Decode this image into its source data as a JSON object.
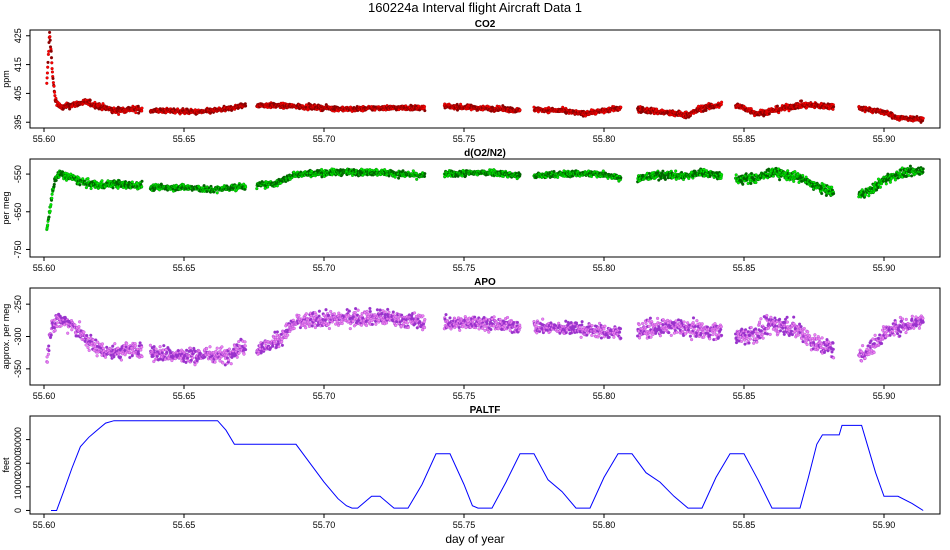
{
  "figure": {
    "title": "160224a   Interval flight Aircraft Data 1",
    "xlabel": "day of year"
  },
  "chart_data": [
    {
      "type": "scatter",
      "title": "CO2",
      "ylabel": "ppm",
      "xlim": [
        55.595,
        55.92
      ],
      "ylim": [
        393,
        427
      ],
      "xticks": [
        55.6,
        55.65,
        55.7,
        55.75,
        55.8,
        55.85,
        55.9
      ],
      "xtick_labels": [
        "55.60",
        "55.65",
        "55.70",
        "55.75",
        "55.80",
        "55.85",
        "55.90"
      ],
      "yticks": [
        395,
        405,
        415,
        425
      ],
      "ytick_labels": [
        "395",
        "405",
        "415",
        "425"
      ],
      "colors": {
        "fill": "#ff0000",
        "edge": "#8b0000"
      },
      "series": [
        {
          "name": "CO2",
          "segments": [
            {
              "x": [
                55.601,
                55.602,
                55.6025,
                55.603,
                55.604,
                55.606,
                55.61,
                55.615,
                55.62,
                55.625,
                55.63,
                55.635
              ],
              "y": [
                408,
                426,
                420,
                412,
                403,
                400,
                401,
                402,
                400.5,
                399,
                399.5,
                399.5
              ],
              "noise": 1.0
            },
            {
              "x": [
                55.638,
                55.645,
                55.655,
                55.665,
                55.672
              ],
              "y": [
                399,
                399,
                398.5,
                399.5,
                401
              ],
              "noise": 0.8
            },
            {
              "x": [
                55.676,
                55.69,
                55.71,
                55.72,
                55.736
              ],
              "y": [
                401,
                400.5,
                399.5,
                400,
                400
              ],
              "noise": 0.8
            },
            {
              "x": [
                55.743,
                55.755,
                55.765,
                55.77
              ],
              "y": [
                400.5,
                400,
                399.5,
                399
              ],
              "noise": 0.8
            },
            {
              "x": [
                55.775,
                55.785,
                55.792,
                55.8,
                55.806
              ],
              "y": [
                399.5,
                399,
                398,
                399,
                400
              ],
              "noise": 0.8
            },
            {
              "x": [
                55.812,
                55.825,
                55.83,
                55.835,
                55.842
              ],
              "y": [
                399.5,
                398,
                397.5,
                400,
                401
              ],
              "noise": 1.0
            },
            {
              "x": [
                55.847,
                55.855,
                55.86,
                55.87,
                55.882
              ],
              "y": [
                401,
                398,
                399,
                401,
                400.5
              ],
              "noise": 1.0
            },
            {
              "x": [
                55.891,
                55.9,
                55.905,
                55.914
              ],
              "y": [
                400,
                398.5,
                396.5,
                396
              ],
              "noise": 0.8
            }
          ]
        }
      ]
    },
    {
      "type": "scatter",
      "title": "d(O2/N2)",
      "ylabel": "per meg",
      "xlim": [
        55.595,
        55.92
      ],
      "ylim": [
        -770,
        -510
      ],
      "xticks": [
        55.6,
        55.65,
        55.7,
        55.75,
        55.8,
        55.85,
        55.9
      ],
      "xtick_labels": [
        "55.60",
        "55.65",
        "55.70",
        "55.75",
        "55.80",
        "55.85",
        "55.90"
      ],
      "yticks": [
        -750,
        -650,
        -550
      ],
      "ytick_labels": [
        "-750",
        "-650",
        "-550"
      ],
      "colors": {
        "fill": "#00ee00",
        "edge": "#006400"
      },
      "series": [
        {
          "name": "d(O2/N2)",
          "segments": [
            {
              "x": [
                55.601,
                55.602,
                55.603,
                55.604,
                55.606,
                55.61,
                55.615,
                55.62,
                55.625,
                55.63,
                55.635
              ],
              "y": [
                -700,
                -650,
                -600,
                -560,
                -550,
                -560,
                -575,
                -580,
                -575,
                -580,
                -580
              ],
              "noise": 10
            },
            {
              "x": [
                55.638,
                55.65,
                55.66,
                55.668,
                55.672
              ],
              "y": [
                -585,
                -585,
                -592,
                -585,
                -582
              ],
              "noise": 8
            },
            {
              "x": [
                55.676,
                55.683,
                55.69,
                55.705,
                55.72,
                55.736
              ],
              "y": [
                -580,
                -575,
                -550,
                -545,
                -545,
                -555
              ],
              "noise": 8
            },
            {
              "x": [
                55.743,
                55.76,
                55.77
              ],
              "y": [
                -550,
                -545,
                -555
              ],
              "noise": 8
            },
            {
              "x": [
                55.775,
                55.79,
                55.8,
                55.806
              ],
              "y": [
                -555,
                -548,
                -550,
                -560
              ],
              "noise": 8
            },
            {
              "x": [
                55.812,
                55.82,
                55.83,
                55.835,
                55.842
              ],
              "y": [
                -562,
                -552,
                -555,
                -545,
                -555
              ],
              "noise": 10
            },
            {
              "x": [
                55.847,
                55.855,
                55.86,
                55.87,
                55.875,
                55.882
              ],
              "y": [
                -565,
                -560,
                -545,
                -560,
                -580,
                -600
              ],
              "noise": 12
            },
            {
              "x": [
                55.891,
                55.895,
                55.9,
                55.905,
                55.914
              ],
              "y": [
                -605,
                -595,
                -565,
                -550,
                -540
              ],
              "noise": 12
            }
          ]
        }
      ]
    },
    {
      "type": "scatter",
      "title": "APO",
      "ylabel": "approx. per meg",
      "xlim": [
        55.595,
        55.92
      ],
      "ylim": [
        -375,
        -225
      ],
      "xticks": [
        55.6,
        55.65,
        55.7,
        55.75,
        55.8,
        55.85,
        55.9
      ],
      "xtick_labels": [
        "55.60",
        "55.65",
        "55.70",
        "55.75",
        "55.80",
        "55.85",
        "55.90"
      ],
      "yticks": [
        -350,
        -300,
        -250
      ],
      "ytick_labels": [
        "-350",
        "-300",
        "-250"
      ],
      "colors": {
        "fill": "#ee82ee",
        "edge": "#9932cc"
      },
      "series": [
        {
          "name": "APO",
          "segments": [
            {
              "x": [
                55.601,
                55.602,
                55.603,
                55.605,
                55.61,
                55.615,
                55.62,
                55.625,
                55.63,
                55.635
              ],
              "y": [
                -340,
                -300,
                -280,
                -275,
                -280,
                -305,
                -320,
                -325,
                -320,
                -320
              ],
              "noise": 12
            },
            {
              "x": [
                55.638,
                55.65,
                55.66,
                55.665,
                55.668,
                55.672
              ],
              "y": [
                -325,
                -330,
                -328,
                -330,
                -320,
                -315
              ],
              "noise": 12
            },
            {
              "x": [
                55.676,
                55.68,
                55.685,
                55.69,
                55.705,
                55.72,
                55.736
              ],
              "y": [
                -318,
                -315,
                -300,
                -278,
                -272,
                -270,
                -278
              ],
              "noise": 12
            },
            {
              "x": [
                55.743,
                55.755,
                55.77
              ],
              "y": [
                -280,
                -278,
                -285
              ],
              "noise": 10
            },
            {
              "x": [
                55.775,
                55.79,
                55.806
              ],
              "y": [
                -285,
                -288,
                -295
              ],
              "noise": 10
            },
            {
              "x": [
                55.812,
                55.825,
                55.835,
                55.842
              ],
              "y": [
                -290,
                -285,
                -290,
                -292
              ],
              "noise": 12
            },
            {
              "x": [
                55.847,
                55.855,
                55.86,
                55.87,
                55.875,
                55.882
              ],
              "y": [
                -300,
                -295,
                -280,
                -290,
                -310,
                -320
              ],
              "noise": 14
            },
            {
              "x": [
                55.891,
                55.895,
                55.9,
                55.905,
                55.914
              ],
              "y": [
                -330,
                -320,
                -295,
                -285,
                -275
              ],
              "noise": 12
            }
          ]
        }
      ]
    },
    {
      "type": "line",
      "title": "PALTF",
      "ylabel": "feet",
      "xlim": [
        55.595,
        55.92
      ],
      "ylim": [
        -1500,
        40000
      ],
      "xticks": [
        55.6,
        55.65,
        55.7,
        55.75,
        55.8,
        55.85,
        55.9
      ],
      "xtick_labels": [
        "55.60",
        "55.65",
        "55.70",
        "55.75",
        "55.80",
        "55.85",
        "55.90"
      ],
      "yticks": [
        0,
        10000,
        20000,
        30000
      ],
      "ytick_labels": [
        "0",
        "10000",
        "20000",
        "30000"
      ],
      "colors": {
        "line": "#0000ff"
      },
      "series": [
        {
          "name": "PALTF",
          "x": [
            55.6025,
            55.6045,
            55.607,
            55.61,
            55.613,
            55.616,
            55.618,
            55.62,
            55.622,
            55.625,
            55.63,
            55.64,
            55.65,
            55.66,
            55.662,
            55.665,
            55.668,
            55.672,
            55.676,
            55.683,
            55.69,
            55.695,
            55.7,
            55.705,
            55.708,
            55.71,
            55.712,
            55.717,
            55.72,
            55.725,
            55.73,
            55.735,
            55.74,
            55.745,
            55.75,
            55.753,
            55.755,
            55.76,
            55.765,
            55.77,
            55.775,
            55.78,
            55.785,
            55.79,
            55.795,
            55.8,
            55.805,
            55.81,
            55.815,
            55.82,
            55.825,
            55.83,
            55.835,
            55.84,
            55.845,
            55.85,
            55.855,
            55.86,
            55.865,
            55.87,
            55.873,
            55.876,
            55.878,
            55.882,
            55.884,
            55.885,
            55.89,
            55.892,
            55.894,
            55.897,
            55.9,
            55.905,
            55.91,
            55.914
          ],
          "y": [
            0,
            0,
            8000,
            18000,
            27000,
            31000,
            33000,
            35000,
            37000,
            38000,
            38000,
            38000,
            38000,
            38000,
            38000,
            34000,
            28000,
            28000,
            28000,
            28000,
            28000,
            20000,
            12000,
            5000,
            2000,
            1000,
            1000,
            6000,
            6000,
            1000,
            1000,
            11000,
            24000,
            24000,
            11000,
            2000,
            1000,
            1000,
            12000,
            24000,
            24000,
            13000,
            8000,
            1000,
            1000,
            14000,
            24000,
            24000,
            16000,
            12000,
            6000,
            1000,
            1000,
            14000,
            24000,
            24000,
            13000,
            1000,
            1000,
            1000,
            14000,
            28000,
            32000,
            32000,
            32000,
            36000,
            36000,
            36000,
            28000,
            16000,
            6000,
            6000,
            3000,
            0
          ]
        }
      ]
    }
  ]
}
